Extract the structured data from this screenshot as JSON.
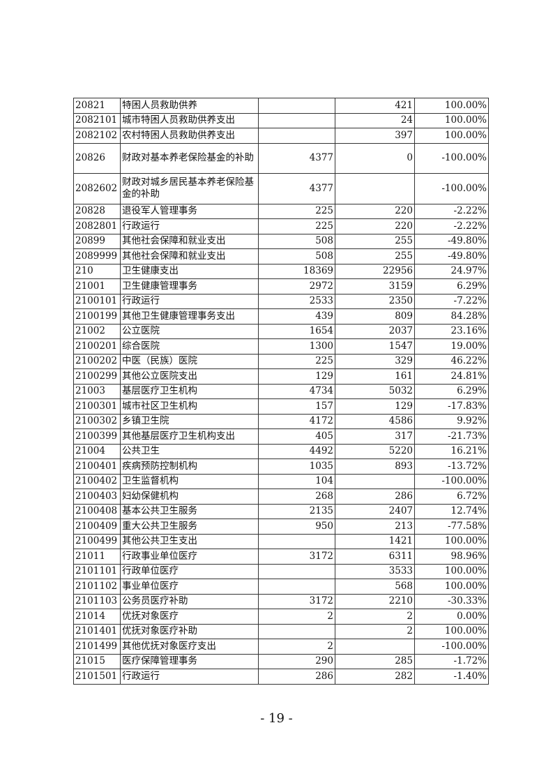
{
  "table": {
    "rows": [
      {
        "code": "20821",
        "name": "特困人员救助供养",
        "prev": "",
        "curr": "421",
        "change": "100.00%"
      },
      {
        "code": "2082101",
        "name": "城市特困人员救助供养支出",
        "prev": "",
        "curr": "24",
        "change": "100.00%"
      },
      {
        "code": "2082102",
        "name": "农村特困人员救助供养支出",
        "prev": "",
        "curr": "397",
        "change": "100.00%"
      },
      {
        "code": "20826",
        "name": "财政对基本养老保险基金的补助",
        "prev": "4377",
        "curr": "0",
        "change": "-100.00%",
        "tall": true
      },
      {
        "code": "2082602",
        "name": "财政对城乡居民基本养老保险基金的补助",
        "prev": "4377",
        "curr": "",
        "change": "-100.00%",
        "tall": true
      },
      {
        "code": "20828",
        "name": "退役军人管理事务",
        "prev": "225",
        "curr": "220",
        "change": "-2.22%"
      },
      {
        "code": "2082801",
        "name": "行政运行",
        "prev": "225",
        "curr": "220",
        "change": "-2.22%"
      },
      {
        "code": "20899",
        "name": "其他社会保障和就业支出",
        "prev": "508",
        "curr": "255",
        "change": "-49.80%"
      },
      {
        "code": "2089999",
        "name": "其他社会保障和就业支出",
        "prev": "508",
        "curr": "255",
        "change": "-49.80%"
      },
      {
        "code": "210",
        "name": "卫生健康支出",
        "prev": "18369",
        "curr": "22956",
        "change": "24.97%"
      },
      {
        "code": "21001",
        "name": "卫生健康管理事务",
        "prev": "2972",
        "curr": "3159",
        "change": "6.29%"
      },
      {
        "code": "2100101",
        "name": "行政运行",
        "prev": "2533",
        "curr": "2350",
        "change": "-7.22%"
      },
      {
        "code": "2100199",
        "name": "其他卫生健康管理事务支出",
        "prev": "439",
        "curr": "809",
        "change": "84.28%"
      },
      {
        "code": "21002",
        "name": "公立医院",
        "prev": "1654",
        "curr": "2037",
        "change": "23.16%"
      },
      {
        "code": "2100201",
        "name": "综合医院",
        "prev": "1300",
        "curr": "1547",
        "change": "19.00%"
      },
      {
        "code": "2100202",
        "name": "中医（民族）医院",
        "prev": "225",
        "curr": "329",
        "change": "46.22%"
      },
      {
        "code": "2100299",
        "name": "其他公立医院支出",
        "prev": "129",
        "curr": "161",
        "change": "24.81%"
      },
      {
        "code": "21003",
        "name": "基层医疗卫生机构",
        "prev": "4734",
        "curr": "5032",
        "change": "6.29%"
      },
      {
        "code": "2100301",
        "name": "城市社区卫生机构",
        "prev": "157",
        "curr": "129",
        "change": "-17.83%"
      },
      {
        "code": "2100302",
        "name": "乡镇卫生院",
        "prev": "4172",
        "curr": "4586",
        "change": "9.92%"
      },
      {
        "code": "2100399",
        "name": "其他基层医疗卫生机构支出",
        "prev": "405",
        "curr": "317",
        "change": "-21.73%"
      },
      {
        "code": "21004",
        "name": "公共卫生",
        "prev": "4492",
        "curr": "5220",
        "change": "16.21%"
      },
      {
        "code": "2100401",
        "name": "疾病预防控制机构",
        "prev": "1035",
        "curr": "893",
        "change": "-13.72%"
      },
      {
        "code": "2100402",
        "name": "卫生监督机构",
        "prev": "104",
        "curr": "",
        "change": "-100.00%"
      },
      {
        "code": "2100403",
        "name": "妇幼保健机构",
        "prev": "268",
        "curr": "286",
        "change": "6.72%"
      },
      {
        "code": "2100408",
        "name": "基本公共卫生服务",
        "prev": "2135",
        "curr": "2407",
        "change": "12.74%"
      },
      {
        "code": "2100409",
        "name": "重大公共卫生服务",
        "prev": "950",
        "curr": "213",
        "change": "-77.58%"
      },
      {
        "code": "2100499",
        "name": "其他公共卫生支出",
        "prev": "",
        "curr": "1421",
        "change": "100.00%"
      },
      {
        "code": "21011",
        "name": "行政事业单位医疗",
        "prev": "3172",
        "curr": "6311",
        "change": "98.96%"
      },
      {
        "code": "2101101",
        "name": "行政单位医疗",
        "prev": "",
        "curr": "3533",
        "change": "100.00%"
      },
      {
        "code": "2101102",
        "name": "事业单位医疗",
        "prev": "",
        "curr": "568",
        "change": "100.00%"
      },
      {
        "code": "2101103",
        "name": "公务员医疗补助",
        "prev": "3172",
        "curr": "2210",
        "change": "-30.33%"
      },
      {
        "code": "21014",
        "name": "优抚对象医疗",
        "prev": "2",
        "curr": "2",
        "change": "0.00%"
      },
      {
        "code": "2101401",
        "name": "优抚对象医疗补助",
        "prev": "",
        "curr": "2",
        "change": "100.00%"
      },
      {
        "code": "2101499",
        "name": "其他优抚对象医疗支出",
        "prev": "2",
        "curr": "",
        "change": "-100.00%"
      },
      {
        "code": "21015",
        "name": "医疗保障管理事务",
        "prev": "290",
        "curr": "285",
        "change": "-1.72%"
      },
      {
        "code": "2101501",
        "name": "行政运行",
        "prev": "286",
        "curr": "282",
        "change": "-1.40%"
      }
    ]
  },
  "footer": {
    "page_number": "- 19 -"
  }
}
